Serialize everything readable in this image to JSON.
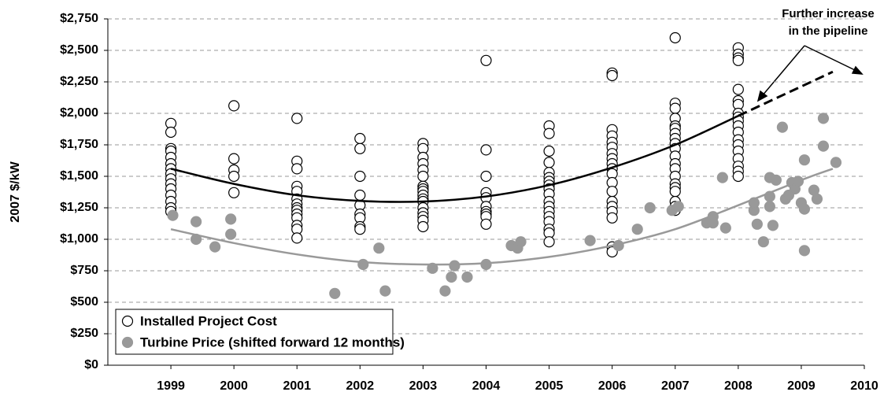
{
  "chart_data": {
    "type": "scatter",
    "y_label": "2007 $/kW",
    "annotation": [
      "Further increase",
      "in the pipeline"
    ],
    "xlim": [
      1998,
      2010
    ],
    "xticks": [
      1999,
      2000,
      2001,
      2002,
      2003,
      2004,
      2005,
      2006,
      2007,
      2008,
      2009,
      2010
    ],
    "ylim": [
      0,
      2750
    ],
    "yticks": [
      {
        "value": 0,
        "label": "$0"
      },
      {
        "value": 250,
        "label": "$250"
      },
      {
        "value": 500,
        "label": "$500"
      },
      {
        "value": 750,
        "label": "$750"
      },
      {
        "value": 1000,
        "label": "$1,000"
      },
      {
        "value": 1250,
        "label": "$1,250"
      },
      {
        "value": 1500,
        "label": "$1,500"
      },
      {
        "value": 1750,
        "label": "$1,750"
      },
      {
        "value": 2000,
        "label": "$2,000"
      },
      {
        "value": 2250,
        "label": "$2,250"
      },
      {
        "value": 2500,
        "label": "$2,500"
      },
      {
        "value": 2750,
        "label": "$2,750"
      }
    ],
    "grid": true,
    "series": [
      {
        "name": "Installed Project Cost",
        "color": "#ffffff",
        "stroke": "#000000",
        "x": [
          1999,
          1999,
          1999,
          1999,
          1999,
          1999,
          1999,
          1999,
          1999,
          1999,
          1999,
          1999,
          1999,
          1999,
          1999,
          2000,
          2000,
          2000,
          2000,
          2000,
          2001,
          2001,
          2001,
          2001,
          2001,
          2001,
          2001,
          2001,
          2001,
          2001,
          2001,
          2001,
          2001,
          2001,
          2002,
          2002,
          2002,
          2002,
          2002,
          2002,
          2002,
          2002,
          2002,
          2003,
          2003,
          2003,
          2003,
          2003,
          2003,
          2003,
          2003,
          2003,
          2003,
          2003,
          2003,
          2003,
          2003,
          2003,
          2003,
          2003,
          2004,
          2004,
          2004,
          2004,
          2004,
          2004,
          2004,
          2004,
          2004,
          2004,
          2005,
          2005,
          2005,
          2005,
          2005,
          2005,
          2005,
          2005,
          2005,
          2005,
          2005,
          2005,
          2005,
          2005,
          2005,
          2005,
          2005,
          2005,
          2006,
          2006,
          2006,
          2006,
          2006,
          2006,
          2006,
          2006,
          2006,
          2006,
          2006,
          2006,
          2006,
          2006,
          2006,
          2006,
          2006,
          2006,
          2006,
          2007,
          2007,
          2007,
          2007,
          2007,
          2007,
          2007,
          2007,
          2007,
          2007,
          2007,
          2007,
          2007,
          2007,
          2007,
          2007,
          2007,
          2007,
          2007,
          2007,
          2008,
          2008,
          2008,
          2008,
          2008,
          2008,
          2008,
          2008,
          2008,
          2008,
          2008,
          2008,
          2008,
          2008,
          2008,
          2008,
          2008,
          2008,
          2008
        ],
        "values": [
          1920,
          1850,
          1720,
          1700,
          1650,
          1600,
          1560,
          1520,
          1480,
          1440,
          1400,
          1350,
          1300,
          1250,
          1220,
          2060,
          1640,
          1550,
          1500,
          1370,
          1960,
          1620,
          1560,
          1420,
          1380,
          1320,
          1280,
          1250,
          1230,
          1200,
          1170,
          1110,
          1080,
          1010,
          1800,
          1720,
          1500,
          1350,
          1270,
          1200,
          1170,
          1100,
          1080,
          1760,
          1720,
          1650,
          1600,
          1550,
          1500,
          1420,
          1400,
          1380,
          1350,
          1320,
          1300,
          1250,
          1210,
          1180,
          1150,
          1100,
          2420,
          1710,
          1500,
          1370,
          1330,
          1260,
          1220,
          1200,
          1180,
          1120,
          1900,
          1840,
          1700,
          1610,
          1530,
          1490,
          1460,
          1430,
          1400,
          1360,
          1300,
          1260,
          1220,
          1180,
          1140,
          1080,
          1050,
          980,
          2320,
          2300,
          1870,
          1820,
          1770,
          1730,
          1680,
          1640,
          1600,
          1560,
          1520,
          1450,
          1380,
          1300,
          1260,
          1220,
          1170,
          940,
          900,
          2600,
          2080,
          2040,
          1960,
          1900,
          1880,
          1840,
          1800,
          1760,
          1720,
          1660,
          1600,
          1560,
          1500,
          1440,
          1410,
          1380,
          1300,
          1260,
          1230,
          2520,
          2470,
          2440,
          2420,
          2190,
          2100,
          2070,
          2000,
          1970,
          1940,
          1900,
          1850,
          1790,
          1750,
          1700,
          1640,
          1580,
          1540,
          1500
        ]
      },
      {
        "name": "Turbine Price (shifted forward 12 months)",
        "color": "#999999",
        "stroke": "#999999",
        "x": [
          1999.03,
          1999.4,
          1999.4,
          1999.7,
          1999.95,
          1999.95,
          2001.6,
          2002.05,
          2002.3,
          2002.4,
          2003.15,
          2003.35,
          2003.45,
          2003.5,
          2003.7,
          2004,
          2004.4,
          2004.5,
          2004.55,
          2005.65,
          2006.1,
          2006.4,
          2006.6,
          2006.95,
          2007.05,
          2007.5,
          2007.6,
          2007.6,
          2007.75,
          2007.8,
          2008.25,
          2008.25,
          2008.3,
          2008.4,
          2008.5,
          2008.5,
          2008.5,
          2008.55,
          2008.6,
          2008.7,
          2008.75,
          2008.8,
          2008.85,
          2008.9,
          2008.95,
          2009,
          2009.05,
          2009.05,
          2009.05,
          2009.2,
          2009.25,
          2009.35,
          2009.35,
          2009.55
        ],
        "values": [
          1190,
          1140,
          1000,
          940,
          1160,
          1040,
          570,
          800,
          930,
          590,
          770,
          590,
          700,
          790,
          700,
          800,
          950,
          930,
          980,
          990,
          950,
          1080,
          1250,
          1230,
          1260,
          1130,
          1180,
          1130,
          1490,
          1090,
          1230,
          1290,
          1120,
          980,
          1490,
          1340,
          1260,
          1110,
          1470,
          1890,
          1320,
          1350,
          1450,
          1400,
          1460,
          1290,
          1630,
          1240,
          910,
          1390,
          1320,
          1960,
          1740,
          1610
        ]
      }
    ],
    "trend_lines": [
      {
        "color": "#000000",
        "dashed": false,
        "x": [
          1999,
          2000,
          2001,
          2002,
          2003,
          2004,
          2005,
          2006,
          2007,
          2008
        ],
        "values": [
          1560,
          1440,
          1350,
          1305,
          1300,
          1340,
          1430,
          1570,
          1750,
          1980
        ]
      },
      {
        "color": "#000000",
        "dashed": true,
        "x": [
          2008,
          2009.5
        ],
        "values": [
          1980,
          2330
        ]
      },
      {
        "color": "#999999",
        "dashed": false,
        "x": [
          1999,
          2000,
          2001,
          2002,
          2003,
          2004,
          2005,
          2006,
          2007,
          2008,
          2009,
          2009.5
        ],
        "values": [
          1080,
          970,
          880,
          820,
          800,
          810,
          860,
          950,
          1080,
          1270,
          1470,
          1560
        ]
      }
    ]
  }
}
